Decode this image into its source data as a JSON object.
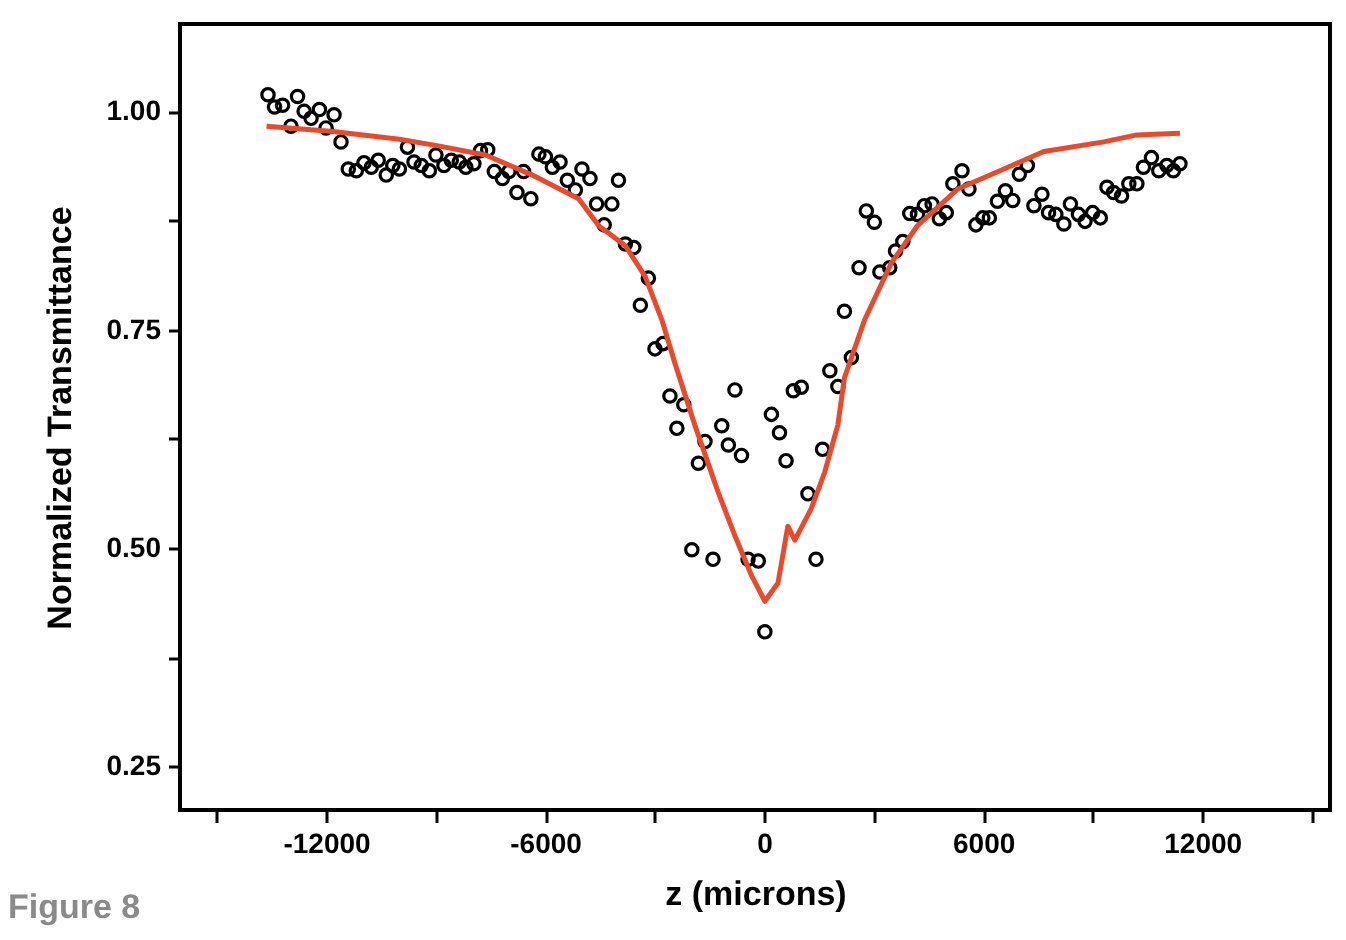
{
  "chart_data": {
    "type": "scatter",
    "xlabel": "z (microns)",
    "ylabel": "Normalized Transmittance",
    "annotations": [
      "Figure 8"
    ],
    "xlim": [
      -16000,
      15500
    ],
    "ylim": [
      0.2,
      1.1
    ],
    "xticks": [
      {
        "value": -15000,
        "label": null
      },
      -12000,
      {
        "value": -9000,
        "label": null
      },
      -6000,
      {
        "value": -3000,
        "label": null
      },
      0,
      {
        "value": 3000,
        "label": null
      },
      6000,
      {
        "value": 9000,
        "label": null
      },
      12000,
      {
        "value": 15000,
        "label": null
      }
    ],
    "yticks": [
      {
        "value": 0.25,
        "label": "0.25"
      },
      {
        "value": 0.375,
        "label": null
      },
      {
        "value": 0.5,
        "label": "0.50"
      },
      {
        "value": 0.625,
        "label": null
      },
      {
        "value": 0.75,
        "label": "0.75"
      },
      {
        "value": 0.875,
        "label": null
      },
      {
        "value": 1,
        "label": "1.00"
      }
    ],
    "grid": false,
    "marker": "circle",
    "series": [
      {
        "color": "#000000",
        "x": [
          -13590,
          -13410,
          -13190,
          -12960,
          -12780,
          -12600,
          -12410,
          -12180,
          -12000,
          -11780,
          -11590,
          -11390,
          -11170,
          -10960,
          -10760,
          -10570,
          -10350,
          -10170,
          -9990,
          -9770,
          -9590,
          -9390,
          -9170,
          -8990,
          -8770,
          -8570,
          -8350,
          -8170,
          -7950,
          -7770,
          -7570,
          -7390,
          -7170,
          -6990,
          -6770,
          -6590,
          -6390,
          -6170,
          -5990,
          -5800,
          -5590,
          -5390,
          -5170,
          -4990,
          -4770,
          -4590,
          -4380,
          -4170,
          -3990,
          -3800,
          -3570,
          -3390,
          -3170,
          -2990,
          -2770,
          -2580,
          -2390,
          -2200,
          -1980,
          -1800,
          -1620,
          -1400,
          -1160,
          -980,
          -800,
          -620,
          -440,
          -160,
          20,
          200,
          420,
          600,
          800,
          1020,
          1200,
          1420,
          1600,
          1800,
          2020,
          2200,
          2390,
          2600,
          2800,
          3020,
          3170,
          3440,
          3600,
          3800,
          3990,
          4200,
          4390,
          4600,
          4800,
          4990,
          5170,
          5420,
          5610,
          5800,
          5990,
          6170,
          6390,
          6610,
          6810,
          6990,
          7210,
          7390,
          7610,
          7790,
          7990,
          8210,
          8390,
          8610,
          8790,
          9000,
          9210,
          9390,
          9570,
          9790,
          9990,
          10210,
          10390,
          10610,
          10810,
          11030,
          11210,
          11390
        ],
        "values": [
          1.019,
          1.005,
          1.007,
          0.983,
          1.017,
          1.0,
          0.992,
          1.002,
          0.981,
          0.996,
          0.965,
          0.934,
          0.932,
          0.941,
          0.936,
          0.944,
          0.927,
          0.938,
          0.934,
          0.959,
          0.942,
          0.938,
          0.932,
          0.95,
          0.938,
          0.944,
          0.942,
          0.936,
          0.94,
          0.955,
          0.956,
          0.931,
          0.923,
          0.931,
          0.907,
          0.931,
          0.9,
          0.951,
          0.948,
          0.936,
          0.942,
          0.921,
          0.91,
          0.934,
          0.923,
          0.894,
          0.87,
          0.894,
          0.921,
          0.848,
          0.844,
          0.778,
          0.809,
          0.728,
          0.734,
          0.674,
          0.637,
          0.664,
          0.498,
          0.597,
          0.622,
          0.487,
          0.64,
          0.618,
          0.681,
          0.606,
          0.487,
          0.485,
          0.404,
          0.653,
          0.632,
          0.6,
          0.68,
          0.684,
          0.562,
          0.487,
          0.613,
          0.703,
          0.685,
          0.771,
          0.718,
          0.821,
          0.886,
          0.873,
          0.816,
          0.821,
          0.84,
          0.851,
          0.883,
          0.882,
          0.892,
          0.894,
          0.877,
          0.884,
          0.917,
          0.932,
          0.911,
          0.87,
          0.878,
          0.878,
          0.897,
          0.909,
          0.898,
          0.928,
          0.938,
          0.892,
          0.905,
          0.884,
          0.882,
          0.871,
          0.894,
          0.882,
          0.874,
          0.884,
          0.878,
          0.913,
          0.907,
          0.903,
          0.917,
          0.917,
          0.936,
          0.947,
          0.932,
          0.938,
          0.932,
          0.94
        ]
      },
      {
        "type": "line",
        "color": "#ea4a2c",
        "marker": "none",
        "line_style": "solid",
        "x": [
          -13630,
          -11810,
          -9990,
          -9000,
          -7630,
          -6350,
          -5080,
          -4530,
          -3800,
          -3260,
          -2800,
          -2440,
          -1900,
          -1260,
          -800,
          -340,
          20,
          380,
          650,
          840,
          1290,
          1660,
          2020,
          2200,
          2750,
          3480,
          4200,
          5300,
          6570,
          7660,
          9300,
          10210,
          11390
        ],
        "values": [
          0.983,
          0.977,
          0.968,
          0.961,
          0.95,
          0.927,
          0.9,
          0.869,
          0.846,
          0.811,
          0.761,
          0.711,
          0.641,
          0.564,
          0.514,
          0.468,
          0.439,
          0.46,
          0.525,
          0.509,
          0.545,
          0.587,
          0.641,
          0.695,
          0.761,
          0.826,
          0.869,
          0.911,
          0.934,
          0.954,
          0.965,
          0.973,
          0.975
        ]
      }
    ]
  }
}
